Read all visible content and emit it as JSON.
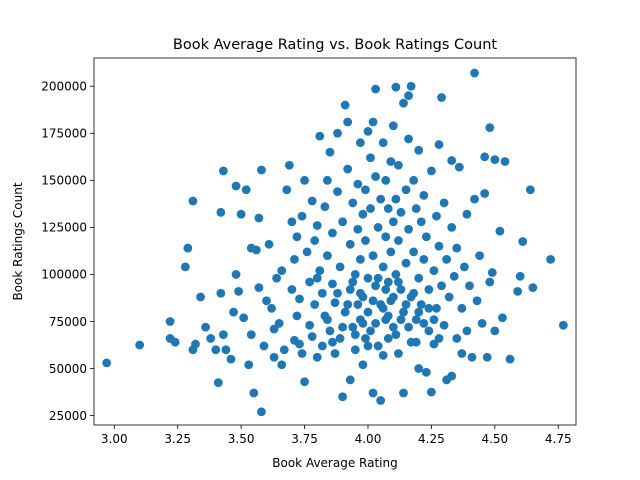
{
  "chart_data": {
    "type": "scatter",
    "title": "Book Average Rating vs. Book Ratings Count",
    "xlabel": "Book Average Rating",
    "ylabel": "Book Ratings Count",
    "xlim": [
      2.92,
      4.82
    ],
    "ylim": [
      20000,
      215000
    ],
    "xticks": [
      3.0,
      3.25,
      3.5,
      3.75,
      4.0,
      4.25,
      4.5,
      4.75
    ],
    "xtick_labels": [
      "3.00",
      "3.25",
      "3.50",
      "3.75",
      "4.00",
      "4.25",
      "4.50",
      "4.75"
    ],
    "yticks": [
      25000,
      50000,
      75000,
      100000,
      125000,
      150000,
      175000,
      200000
    ],
    "ytick_labels": [
      "25000",
      "50000",
      "75000",
      "100000",
      "125000",
      "150000",
      "175000",
      "200000"
    ],
    "grid": false,
    "point_color": "#1f77b4",
    "series": [
      {
        "points": [
          [
            2.97,
            53000
          ],
          [
            3.1,
            62500
          ],
          [
            3.22,
            75000
          ],
          [
            3.22,
            66000
          ],
          [
            3.24,
            64000
          ],
          [
            3.28,
            104000
          ],
          [
            3.29,
            114000
          ],
          [
            3.31,
            139000
          ],
          [
            3.31,
            60000
          ],
          [
            3.32,
            63000
          ],
          [
            3.34,
            88000
          ],
          [
            3.36,
            72000
          ],
          [
            3.38,
            66000
          ],
          [
            3.4,
            60000
          ],
          [
            3.41,
            42500
          ],
          [
            3.42,
            90000
          ],
          [
            3.42,
            133000
          ],
          [
            3.43,
            155000
          ],
          [
            3.43,
            68000
          ],
          [
            3.44,
            60000
          ],
          [
            3.46,
            55000
          ],
          [
            3.47,
            80000
          ],
          [
            3.48,
            147000
          ],
          [
            3.48,
            100000
          ],
          [
            3.49,
            91000
          ],
          [
            3.5,
            132000
          ],
          [
            3.51,
            77000
          ],
          [
            3.52,
            145000
          ],
          [
            3.53,
            52000
          ],
          [
            3.54,
            114000
          ],
          [
            3.54,
            68000
          ],
          [
            3.55,
            37000
          ],
          [
            3.56,
            113000
          ],
          [
            3.57,
            130000
          ],
          [
            3.57,
            93000
          ],
          [
            3.58,
            155500
          ],
          [
            3.58,
            27000
          ],
          [
            3.59,
            62000
          ],
          [
            3.6,
            86000
          ],
          [
            3.61,
            116000
          ],
          [
            3.62,
            82000
          ],
          [
            3.63,
            56000
          ],
          [
            3.63,
            71000
          ],
          [
            3.64,
            98000
          ],
          [
            3.65,
            74000
          ],
          [
            3.66,
            102000
          ],
          [
            3.66,
            52000
          ],
          [
            3.67,
            60000
          ],
          [
            3.68,
            145000
          ],
          [
            3.69,
            158000
          ],
          [
            3.7,
            92000
          ],
          [
            3.7,
            128000
          ],
          [
            3.71,
            65000
          ],
          [
            3.71,
            108000
          ],
          [
            3.72,
            78000
          ],
          [
            3.72,
            120000
          ],
          [
            3.73,
            87000
          ],
          [
            3.73,
            63000
          ],
          [
            3.74,
            131000
          ],
          [
            3.74,
            58000
          ],
          [
            3.75,
            150000
          ],
          [
            3.75,
            43000
          ],
          [
            3.76,
            112000
          ],
          [
            3.77,
            96000
          ],
          [
            3.77,
            73000
          ],
          [
            3.78,
            139000
          ],
          [
            3.78,
            67000
          ],
          [
            3.79,
            118000
          ],
          [
            3.79,
            84000
          ],
          [
            3.8,
            56000
          ],
          [
            3.8,
            126000
          ],
          [
            3.81,
            102000
          ],
          [
            3.81,
            173500
          ],
          [
            3.82,
            90000
          ],
          [
            3.82,
            62000
          ],
          [
            3.83,
            136000
          ],
          [
            3.83,
            78000
          ],
          [
            3.84,
            150000
          ],
          [
            3.84,
            110000
          ],
          [
            3.85,
            165000
          ],
          [
            3.85,
            70000
          ],
          [
            3.86,
            95000
          ],
          [
            3.86,
            122000
          ],
          [
            3.87,
            58000
          ],
          [
            3.87,
            85000
          ],
          [
            3.88,
            175000
          ],
          [
            3.88,
            144000
          ],
          [
            3.89,
            104000
          ],
          [
            3.89,
            66000
          ],
          [
            3.9,
            35000
          ],
          [
            3.9,
            128000
          ],
          [
            3.91,
            80000
          ],
          [
            3.91,
            190000
          ],
          [
            3.92,
            181000
          ],
          [
            3.92,
            156000
          ],
          [
            3.93,
            116000
          ],
          [
            3.93,
            92000
          ],
          [
            3.93,
            44000
          ],
          [
            3.94,
            138000
          ],
          [
            3.94,
            72000
          ],
          [
            3.95,
            100000
          ],
          [
            3.95,
            60000
          ],
          [
            3.96,
            148000
          ],
          [
            3.96,
            124000
          ],
          [
            3.96,
            84000
          ],
          [
            3.97,
            170000
          ],
          [
            3.97,
            108000
          ],
          [
            3.97,
            76000
          ],
          [
            3.98,
            132000
          ],
          [
            3.98,
            88000
          ],
          [
            3.98,
            52000
          ],
          [
            3.99,
            145000
          ],
          [
            3.99,
            118000
          ],
          [
            3.99,
            66000
          ],
          [
            4.0,
            176000
          ],
          [
            4.0,
            98000
          ],
          [
            4.0,
            80000
          ],
          [
            4.01,
            162000
          ],
          [
            4.01,
            135000
          ],
          [
            4.01,
            70000
          ],
          [
            4.02,
            181000
          ],
          [
            4.02,
            110000
          ],
          [
            4.02,
            37000
          ],
          [
            4.03,
            198500
          ],
          [
            4.03,
            152000
          ],
          [
            4.03,
            94000
          ],
          [
            4.04,
            125000
          ],
          [
            4.04,
            62000
          ],
          [
            4.05,
            33000
          ],
          [
            4.05,
            140000
          ],
          [
            4.05,
            84000
          ],
          [
            4.06,
            170000
          ],
          [
            4.06,
            104000
          ],
          [
            4.06,
            57000
          ],
          [
            4.07,
            150000
          ],
          [
            4.07,
            120000
          ],
          [
            4.07,
            76000
          ],
          [
            4.08,
            135000
          ],
          [
            4.08,
            96000
          ],
          [
            4.08,
            66000
          ],
          [
            4.09,
            160000
          ],
          [
            4.09,
            112000
          ],
          [
            4.09,
            86000
          ],
          [
            4.1,
            179000
          ],
          [
            4.1,
            128000
          ],
          [
            4.1,
            72000
          ],
          [
            4.11,
            199500
          ],
          [
            4.11,
            140000
          ],
          [
            4.11,
            100000
          ],
          [
            4.12,
            158000
          ],
          [
            4.12,
            118000
          ],
          [
            4.12,
            58000
          ],
          [
            4.13,
            133000
          ],
          [
            4.13,
            92000
          ],
          [
            4.14,
            191000
          ],
          [
            4.14,
            80000
          ],
          [
            4.14,
            37000
          ],
          [
            4.15,
            145000
          ],
          [
            4.15,
            106000
          ],
          [
            4.16,
            195000
          ],
          [
            4.16,
            172000
          ],
          [
            4.16,
            124000
          ],
          [
            4.17,
            200000
          ],
          [
            4.17,
            88000
          ],
          [
            4.17,
            64000
          ],
          [
            4.18,
            150000
          ],
          [
            4.18,
            112000
          ],
          [
            4.19,
            135000
          ],
          [
            4.19,
            76000
          ],
          [
            4.2,
            166000
          ],
          [
            4.2,
            98000
          ],
          [
            4.2,
            50000
          ],
          [
            4.21,
            128000
          ],
          [
            4.21,
            84000
          ],
          [
            4.22,
            142000
          ],
          [
            4.22,
            108000
          ],
          [
            4.23,
            48000
          ],
          [
            4.23,
            120000
          ],
          [
            4.24,
            92000
          ],
          [
            4.24,
            70000
          ],
          [
            4.25,
            37500
          ],
          [
            4.25,
            155000
          ],
          [
            4.26,
            102000
          ],
          [
            4.26,
            63000
          ],
          [
            4.27,
            131000
          ],
          [
            4.27,
            82000
          ],
          [
            4.28,
            169000
          ],
          [
            4.28,
            115000
          ],
          [
            4.29,
            194000
          ],
          [
            4.29,
            94000
          ],
          [
            4.3,
            73000
          ],
          [
            4.3,
            138000
          ],
          [
            4.31,
            44000
          ],
          [
            4.31,
            108000
          ],
          [
            4.32,
            88000
          ],
          [
            4.33,
            160500
          ],
          [
            4.33,
            125000
          ],
          [
            4.33,
            46000
          ],
          [
            4.34,
            99000
          ],
          [
            4.35,
            66000
          ],
          [
            4.35,
            114000
          ],
          [
            4.36,
            157000
          ],
          [
            4.37,
            82000
          ],
          [
            4.37,
            58000
          ],
          [
            4.38,
            104000
          ],
          [
            4.39,
            132000
          ],
          [
            4.39,
            70000
          ],
          [
            4.4,
            94000
          ],
          [
            4.41,
            56000
          ],
          [
            4.42,
            207000
          ],
          [
            4.42,
            140000
          ],
          [
            4.43,
            86000
          ],
          [
            4.44,
            110000
          ],
          [
            4.45,
            74000
          ],
          [
            4.46,
            162500
          ],
          [
            4.46,
            143000
          ],
          [
            4.47,
            56000
          ],
          [
            4.48,
            178000
          ],
          [
            4.48,
            96000
          ],
          [
            4.49,
            101000
          ],
          [
            4.5,
            161000
          ],
          [
            4.5,
            70000
          ],
          [
            4.52,
            123000
          ],
          [
            4.53,
            77000
          ],
          [
            4.54,
            160000
          ],
          [
            4.56,
            55000
          ],
          [
            4.59,
            91000
          ],
          [
            4.6,
            99000
          ],
          [
            4.61,
            117500
          ],
          [
            4.64,
            145000
          ],
          [
            4.65,
            93000
          ],
          [
            4.72,
            108000
          ],
          [
            4.77,
            73000
          ],
          [
            3.8,
            98000
          ],
          [
            3.84,
            76000
          ],
          [
            3.86,
            64000
          ],
          [
            3.88,
            90000
          ],
          [
            3.9,
            72000
          ],
          [
            3.92,
            84000
          ],
          [
            3.94,
            96000
          ],
          [
            3.95,
            68000
          ],
          [
            3.97,
            90000
          ],
          [
            3.98,
            74000
          ],
          [
            4.0,
            62000
          ],
          [
            4.02,
            86000
          ],
          [
            4.03,
            74000
          ],
          [
            4.04,
            98000
          ],
          [
            4.06,
            82000
          ],
          [
            4.07,
            92000
          ],
          [
            4.08,
            78000
          ],
          [
            4.1,
            88000
          ],
          [
            4.11,
            68000
          ],
          [
            4.12,
            96000
          ],
          [
            4.13,
            76000
          ],
          [
            4.15,
            84000
          ],
          [
            4.16,
            72000
          ],
          [
            4.18,
            90000
          ],
          [
            4.19,
            64000
          ],
          [
            4.2,
            80000
          ],
          [
            4.22,
            74000
          ],
          [
            4.24,
            82000
          ],
          [
            4.26,
            76000
          ],
          [
            4.28,
            66000
          ]
        ]
      }
    ]
  }
}
